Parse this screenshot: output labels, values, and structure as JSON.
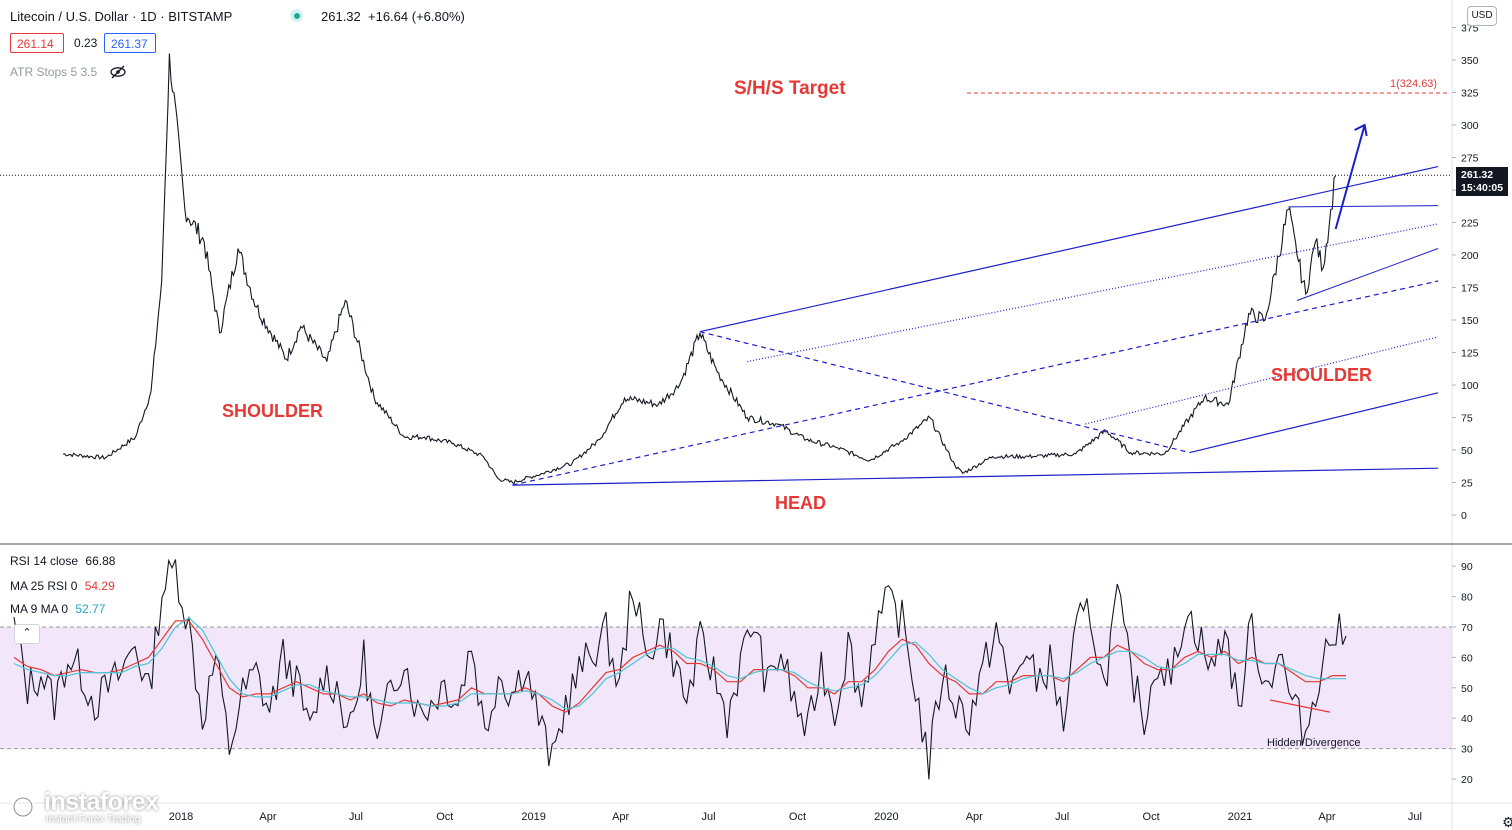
{
  "header": {
    "symbol": "Litecoin / U.S. Dollar · 1D · BITSTAMP",
    "last": "261.32",
    "change": "+16.64 (+6.80%)",
    "bid": "261.14",
    "spread": "0.23",
    "ask": "261.37",
    "atr_label": "ATR Stops 5 3.5"
  },
  "currency": "USD",
  "price_tag": {
    "price": "261.32",
    "countdown": "15:40:05"
  },
  "annotations": {
    "target": "S/H/S Target",
    "left_shoulder": "SHOULDER",
    "head": "HEAD",
    "right_shoulder": "SHOULDER",
    "target_level": "1(324.63)",
    "divergence": "Hidden Divergence"
  },
  "rsi_legend": {
    "rsi_label": "RSI 14 close",
    "rsi_value": "66.88",
    "ma25_label": "MA 25 RSI 0",
    "ma25_value": "54.29",
    "ma9_label": "MA 9 MA 0",
    "ma9_value": "52.77"
  },
  "branding": {
    "name": "instaforex",
    "tagline": "Instant Forex Trading"
  },
  "colors": {
    "price_line": "#131722",
    "pattern": "#1c1fc9",
    "annotation": "#e53935",
    "rsi_band": "#f2e6fb",
    "ma25": "#e53935",
    "ma9": "#4dc3d6"
  },
  "chart_data": [
    {
      "type": "line",
      "title": "Litecoin / U.S. Dollar · 1D · BITSTAMP",
      "ylim": [
        -30,
        380
      ],
      "yticks": [
        0,
        25,
        50,
        75,
        100,
        125,
        150,
        175,
        200,
        225,
        250,
        275,
        300,
        325,
        350,
        375
      ],
      "x_tick_labels": [
        "2018",
        "Apr",
        "Jul",
        "Oct",
        "2019",
        "Apr",
        "Jul",
        "Oct",
        "2020",
        "Apr",
        "Jul",
        "Oct",
        "2021",
        "Apr",
        "Jul"
      ],
      "x": [
        "2017-09-01",
        "2017-10-15",
        "2017-11-15",
        "2017-12-01",
        "2017-12-12",
        "2017-12-20",
        "2018-01-05",
        "2018-01-25",
        "2018-02-10",
        "2018-03-01",
        "2018-03-20",
        "2018-04-20",
        "2018-05-05",
        "2018-06-01",
        "2018-06-20",
        "2018-07-20",
        "2018-08-20",
        "2018-09-10",
        "2018-10-10",
        "2018-11-10",
        "2018-11-25",
        "2018-12-10",
        "2019-01-10",
        "2019-02-10",
        "2019-03-10",
        "2019-04-05",
        "2019-05-10",
        "2019-06-01",
        "2019-06-22",
        "2019-07-10",
        "2019-08-10",
        "2019-09-10",
        "2019-10-10",
        "2019-11-10",
        "2019-12-15",
        "2020-01-15",
        "2020-02-15",
        "2020-03-12",
        "2020-03-20",
        "2020-04-20",
        "2020-06-01",
        "2020-07-15",
        "2020-08-15",
        "2020-09-10",
        "2020-10-15",
        "2020-11-10",
        "2020-11-25",
        "2020-12-20",
        "2021-01-10",
        "2021-01-27",
        "2021-02-20",
        "2021-03-01",
        "2021-03-10",
        "2021-03-20",
        "2021-03-28",
        "2021-04-05",
        "2021-04-10"
      ],
      "y": [
        47,
        44,
        60,
        95,
        180,
        355,
        235,
        210,
        140,
        205,
        160,
        120,
        145,
        118,
        165,
        90,
        60,
        60,
        55,
        45,
        28,
        25,
        32,
        40,
        58,
        90,
        85,
        100,
        140,
        110,
        75,
        70,
        58,
        52,
        42,
        56,
        75,
        38,
        32,
        45,
        45,
        47,
        65,
        48,
        47,
        75,
        90,
        85,
        155,
        150,
        235,
        200,
        170,
        210,
        190,
        235,
        261
      ],
      "series": [
        {
          "values": [
            47,
            44,
            60,
            95,
            180,
            355,
            235,
            210,
            140,
            205,
            160,
            120,
            145,
            118,
            165,
            90,
            60,
            60,
            55,
            45,
            28,
            25,
            32,
            40,
            58,
            90,
            85,
            100,
            140,
            110,
            75,
            70,
            58,
            52,
            42,
            56,
            75,
            38,
            32,
            45,
            45,
            47,
            65,
            48,
            47,
            75,
            90,
            85,
            155,
            150,
            235,
            200,
            170,
            210,
            190,
            235,
            261
          ]
        }
      ],
      "markers": {
        "last_price": 261.32,
        "target": 324.63
      }
    },
    {
      "type": "line",
      "title": "RSI 14 close",
      "ylim": [
        10,
        95
      ],
      "yticks": [
        20,
        30,
        40,
        50,
        60,
        70,
        80,
        90
      ],
      "band": [
        30,
        70
      ],
      "series": [
        {
          "name": "RSI 14 close",
          "values": [
            70,
            50,
            55,
            45,
            60,
            55,
            45,
            50,
            55,
            65,
            48,
            82,
            90,
            70,
            40,
            60,
            30,
            48,
            55,
            42,
            60,
            52,
            35,
            55,
            50,
            35,
            60,
            30,
            50,
            60,
            42,
            45,
            52,
            45,
            65,
            35,
            55,
            48,
            58,
            40,
            25,
            45,
            55,
            62,
            68,
            50,
            85,
            58,
            72,
            60,
            45,
            65,
            55,
            40,
            58,
            72,
            50,
            62,
            45,
            35,
            58,
            42,
            65,
            45,
            70,
            78,
            72,
            50,
            25,
            55,
            45,
            40,
            55,
            70,
            48,
            62,
            52,
            58,
            38,
            70,
            75,
            50,
            80,
            55,
            40,
            60,
            52,
            75,
            68,
            55,
            70,
            42,
            72,
            50,
            62,
            45,
            35,
            55,
            68,
            67
          ]
        },
        {
          "name": "MA 25 RSI 0",
          "values": [
            60,
            57,
            56,
            54,
            55,
            56,
            55,
            55,
            56,
            58,
            60,
            66,
            72,
            72,
            66,
            58,
            50,
            47,
            48,
            48,
            50,
            52,
            50,
            48,
            48,
            46,
            48,
            45,
            44,
            46,
            45,
            44,
            45,
            46,
            50,
            48,
            48,
            48,
            50,
            48,
            44,
            42,
            45,
            50,
            55,
            56,
            60,
            62,
            64,
            62,
            58,
            58,
            56,
            52,
            52,
            56,
            56,
            56,
            54,
            50,
            50,
            48,
            52,
            52,
            56,
            62,
            66,
            64,
            58,
            54,
            52,
            48,
            48,
            52,
            52,
            54,
            54,
            54,
            52,
            56,
            60,
            60,
            64,
            62,
            58,
            56,
            56,
            60,
            62,
            60,
            62,
            58,
            60,
            58,
            58,
            55,
            52,
            52,
            54,
            54
          ]
        },
        {
          "name": "MA 9 MA 0",
          "values": [
            58,
            56,
            55,
            54,
            54,
            55,
            55,
            55,
            55,
            57,
            58,
            63,
            70,
            73,
            69,
            61,
            53,
            48,
            47,
            47,
            49,
            51,
            51,
            49,
            48,
            47,
            47,
            46,
            45,
            45,
            45,
            44,
            44,
            45,
            48,
            48,
            48,
            48,
            49,
            48,
            46,
            43,
            44,
            48,
            53,
            55,
            58,
            61,
            63,
            63,
            60,
            59,
            57,
            54,
            53,
            55,
            56,
            56,
            55,
            52,
            50,
            49,
            50,
            51,
            54,
            59,
            64,
            65,
            61,
            56,
            53,
            50,
            48,
            50,
            51,
            53,
            54,
            54,
            53,
            55,
            58,
            60,
            62,
            62,
            60,
            57,
            56,
            58,
            61,
            61,
            61,
            59,
            59,
            58,
            58,
            56,
            54,
            53,
            53,
            53
          ]
        }
      ],
      "x_tick_labels": [
        "2018",
        "Apr",
        "Jul",
        "Oct",
        "2019",
        "Apr",
        "Jul",
        "Oct",
        "2020",
        "Apr",
        "Jul",
        "Oct",
        "2021",
        "Apr",
        "Jul"
      ]
    }
  ]
}
